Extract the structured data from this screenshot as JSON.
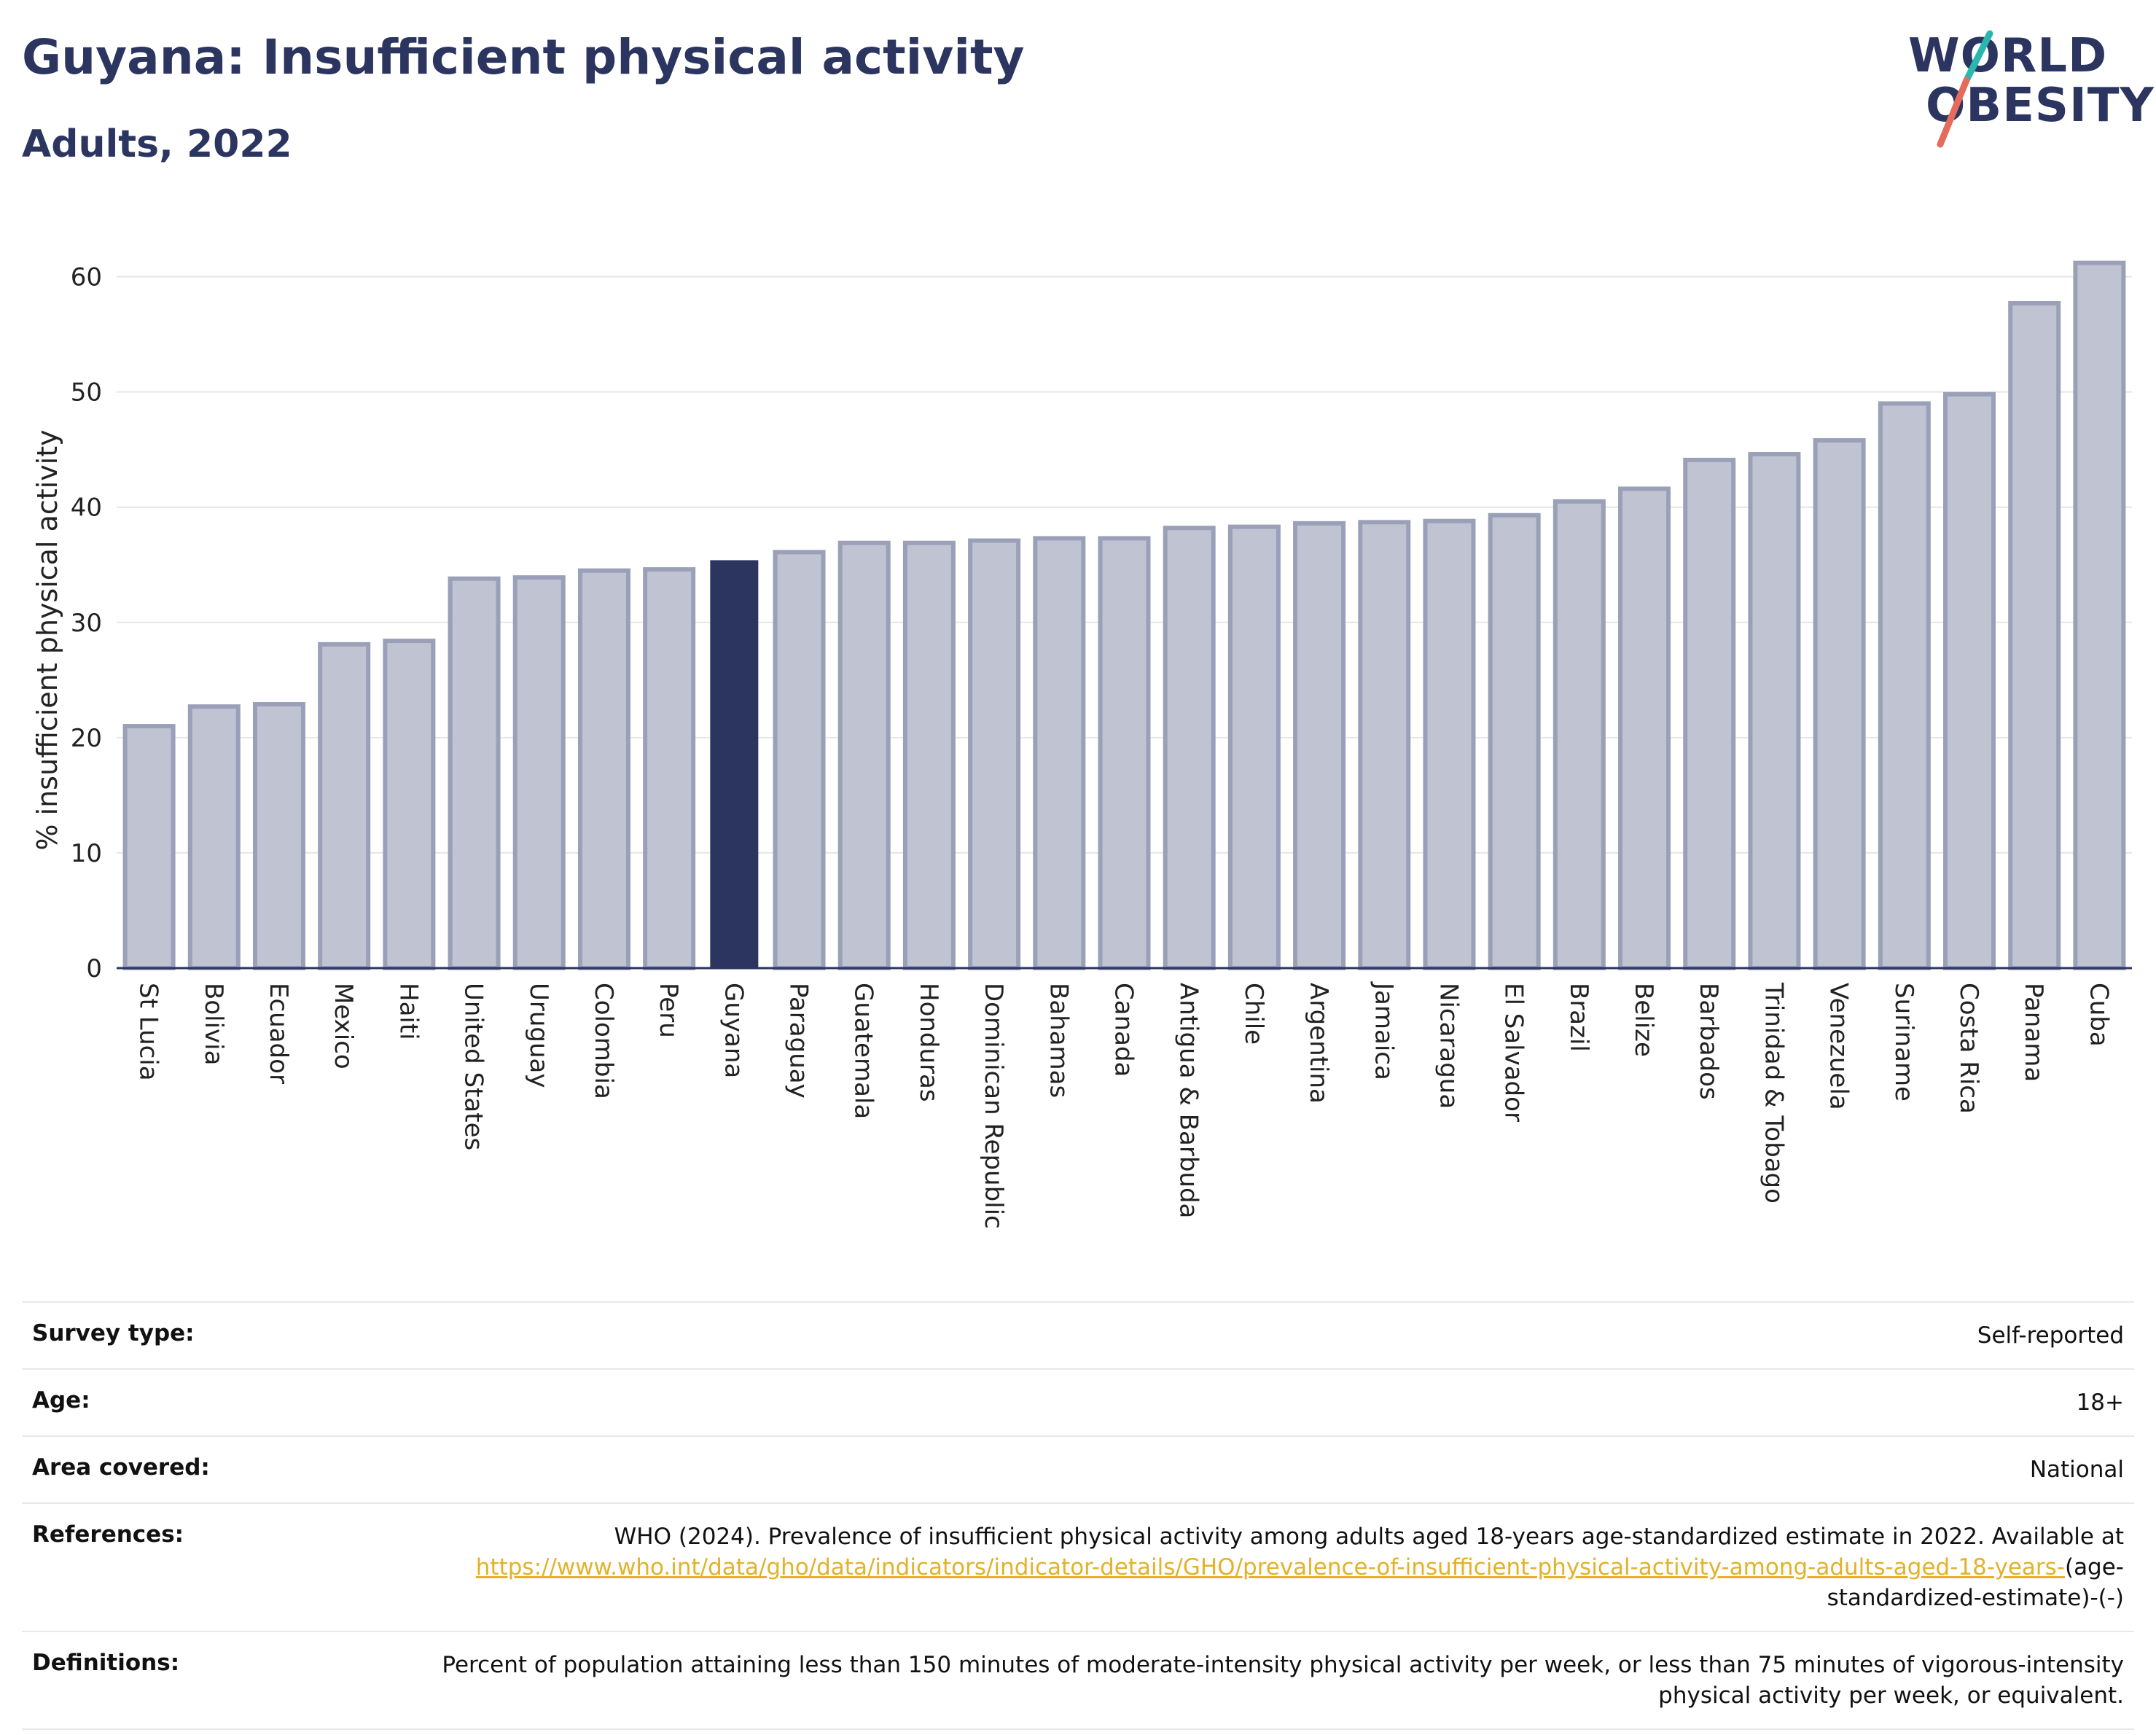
{
  "header": {
    "title": "Guyana: Insufficient physical activity",
    "subtitle": "Adults, 2022"
  },
  "logo": {
    "line1": "WORLD",
    "line2": "OBESITY",
    "accent_colors": [
      "#2ab7b0",
      "#e56b5d"
    ]
  },
  "colors": {
    "highlight": "#2b3560",
    "other_bar_fill": "#c0c3d1",
    "other_bar_stroke": "#9aa0b8",
    "grid": "#e6e6e6",
    "link": "#e3b12a"
  },
  "chart_data": {
    "type": "bar",
    "ylabel": "% insufficient physical activity",
    "ylim": [
      0,
      62
    ],
    "yticks": [
      0,
      10,
      20,
      30,
      40,
      50,
      60
    ],
    "grid": "horizontal",
    "highlight": "Guyana",
    "categories": [
      "St Lucia",
      "Bolivia",
      "Ecuador",
      "Mexico",
      "Haiti",
      "United States",
      "Uruguay",
      "Colombia",
      "Peru",
      "Guyana",
      "Paraguay",
      "Guatemala",
      "Honduras",
      "Dominican Republic",
      "Bahamas",
      "Canada",
      "Antigua & Barbuda",
      "Chile",
      "Argentina",
      "Jamaica",
      "Nicaragua",
      "El Salvador",
      "Brazil",
      "Belize",
      "Barbados",
      "Trinidad & Tobago",
      "Venezuela",
      "Suriname",
      "Costa Rica",
      "Panama",
      "Cuba"
    ],
    "values": [
      21.0,
      22.7,
      22.9,
      28.1,
      28.4,
      33.8,
      33.9,
      34.5,
      34.6,
      35.4,
      36.1,
      36.9,
      36.9,
      37.1,
      37.3,
      37.3,
      38.2,
      38.3,
      38.6,
      38.7,
      38.8,
      39.3,
      40.5,
      41.6,
      44.1,
      44.6,
      45.8,
      49.0,
      49.8,
      57.7,
      61.2
    ]
  },
  "meta": {
    "survey_type_label": "Survey type:",
    "survey_type_value": "Self-reported",
    "age_label": "Age:",
    "age_value": "18+",
    "area_label": "Area covered:",
    "area_value": "National",
    "references_label": "References:",
    "references_text": "WHO (2024). Prevalence of insufficient physical activity among adults aged 18-years age-standardized estimate in 2022. Available at",
    "references_link": "https://www.who.int/data/gho/data/indicators/indicator-details/GHO/prevalence-of-insufficient-physical-activity-among-adults-aged-18-years-",
    "references_suffix": "(age-standardized-estimate)-(-)",
    "definitions_label": "Definitions:",
    "definitions_text": "Percent of population attaining less than 150 minutes of moderate-intensity physical activity per week, or less than 75 minutes of vigorous-intensity physical activity per week, or equivalent."
  }
}
